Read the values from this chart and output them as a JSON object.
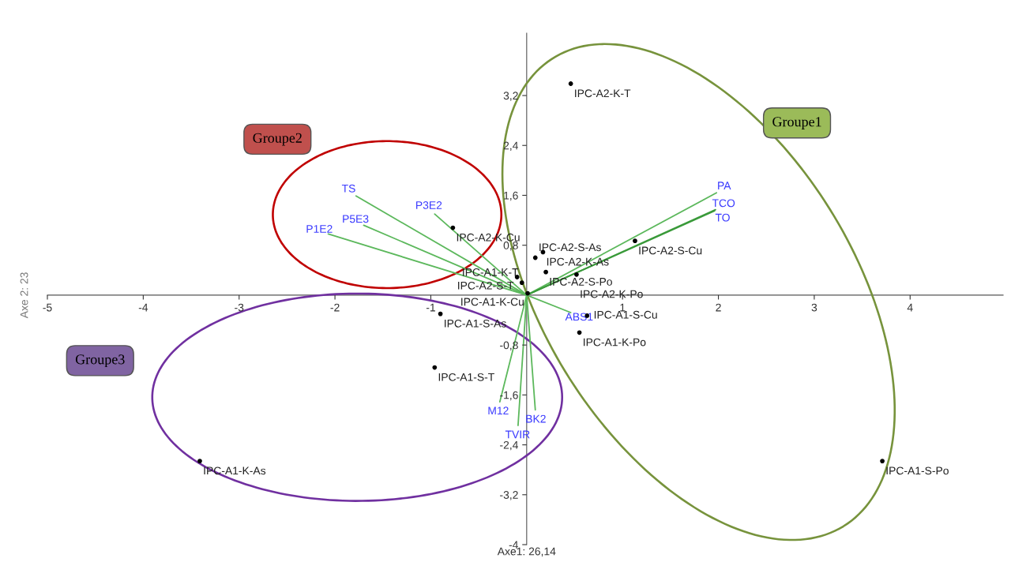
{
  "chart_data": {
    "type": "scatter",
    "xlabel": "Axe1: 26,14",
    "ylabel": "Axe 2: 23",
    "xlim": [
      -5,
      4.97
    ],
    "ylim": [
      -4,
      4.2
    ],
    "xticks": [
      -5,
      -4,
      -3,
      -2,
      -1,
      1,
      2,
      3,
      4
    ],
    "yticks": [
      -4,
      {
        "value": -3.2,
        "label": "-3,2"
      },
      {
        "value": -2.4,
        "label": "-2,4"
      },
      {
        "value": -1.6,
        "label": "-1,6"
      },
      {
        "value": -0.8,
        "label": "-0,8"
      },
      {
        "value": 0.8,
        "label": "0,8"
      },
      {
        "value": 1.6,
        "label": "1,6"
      },
      {
        "value": 2.4,
        "label": "2,4"
      },
      {
        "value": 3.2,
        "label": "3,2"
      }
    ],
    "grid": false,
    "legend": false,
    "line_style": "solid",
    "series": [
      {
        "marker": "circle",
        "color": "#000000",
        "x": [
          0.46,
          -0.77,
          0.17,
          0.09,
          0.2,
          0.52,
          -0.1,
          -0.05,
          0.01,
          1.13,
          0.63,
          0.55,
          -0.9,
          -0.96,
          -3.41,
          3.71
        ],
        "values": [
          3.39,
          1.08,
          0.69,
          0.6,
          0.37,
          0.33,
          0.29,
          0.2,
          0.03,
          0.87,
          -0.33,
          -0.6,
          -0.3,
          -1.16,
          -2.66,
          -2.66
        ]
      },
      {
        "type": "line",
        "name": "TS",
        "color": "#5cb85c",
        "x": [
          0,
          -1.78
        ],
        "values": [
          0,
          1.59
        ]
      },
      {
        "type": "line",
        "name": "P5E3",
        "color": "#5cb85c",
        "x": [
          0,
          -1.7
        ],
        "values": [
          0,
          1.12
        ]
      },
      {
        "type": "line",
        "name": "P1E2",
        "color": "#5cb85c",
        "x": [
          0,
          -2.07
        ],
        "values": [
          0,
          0.98
        ]
      },
      {
        "type": "line",
        "name": "P3E2",
        "color": "#5cb85c",
        "x": [
          0,
          -0.96
        ],
        "values": [
          0,
          1.3
        ]
      },
      {
        "type": "line",
        "name": "PA",
        "color": "#5cb85c",
        "x": [
          0,
          1.98
        ],
        "values": [
          0,
          1.64
        ]
      },
      {
        "type": "line",
        "name": "TCO",
        "color": "#3a9a3a",
        "x": [
          0,
          1.97
        ],
        "values": [
          0,
          1.37
        ]
      },
      {
        "type": "line",
        "name": "TO",
        "color": "#3a9a3a",
        "x": [
          0,
          1.96
        ],
        "values": [
          0,
          1.35
        ]
      },
      {
        "type": "line",
        "name": "ABS1",
        "color": "#5cb85c",
        "x": [
          0,
          0.46
        ],
        "values": [
          0,
          -0.28
        ]
      },
      {
        "type": "line",
        "name": "M12",
        "color": "#5cb85c",
        "x": [
          0,
          -0.28
        ],
        "values": [
          0,
          -1.71
        ]
      },
      {
        "type": "line",
        "name": "TVIR",
        "color": "#5cb85c",
        "x": [
          0,
          -0.09
        ],
        "values": [
          0,
          -2.09
        ]
      },
      {
        "type": "line",
        "name": "BK2",
        "color": "#5cb85c",
        "x": [
          0,
          0.09
        ],
        "values": [
          0,
          -1.84
        ]
      }
    ],
    "annotations": [
      {
        "text": "IPC-A2-K-T",
        "x": 0.46,
        "y": 3.39
      },
      {
        "text": "IPC-A2-K-Cu",
        "x": -0.77,
        "y": 1.08
      },
      {
        "text": "IPC-A2-K-As",
        "x": 0.17,
        "y": 0.69
      },
      {
        "text": "IPC-A2-S-As",
        "x": 0.09,
        "y": 0.6
      },
      {
        "text": "IPC-A2-S-Po",
        "x": 0.2,
        "y": 0.37
      },
      {
        "text": "IPC-A2-K-Po",
        "x": 0.52,
        "y": 0.33
      },
      {
        "text": "IPC-A2-S-T",
        "x": -0.1,
        "y": 0.29
      },
      {
        "text": "IPC-A1-K-T",
        "x": -0.05,
        "y": 0.2
      },
      {
        "text": "IPC-A1-K-Cu",
        "x": 0.01,
        "y": 0.03
      },
      {
        "text": "IPC-A2-S-Cu",
        "x": 1.13,
        "y": 0.87
      },
      {
        "text": "IPC-A1-S-Cu",
        "x": 0.63,
        "y": -0.33
      },
      {
        "text": "IPC-A1-K-Po",
        "x": 0.55,
        "y": -0.6
      },
      {
        "text": "IPC-A1-S-As",
        "x": -0.9,
        "y": -0.3
      },
      {
        "text": "IPC-A1-S-T",
        "x": -0.96,
        "y": -1.16
      },
      {
        "text": "IPC-A1-K-As",
        "x": -3.41,
        "y": -2.66
      },
      {
        "text": "IPC-A1-S-Po",
        "x": 3.71,
        "y": -2.66
      },
      "Groupe1",
      "Groupe2",
      "Groupe3"
    ]
  }
}
